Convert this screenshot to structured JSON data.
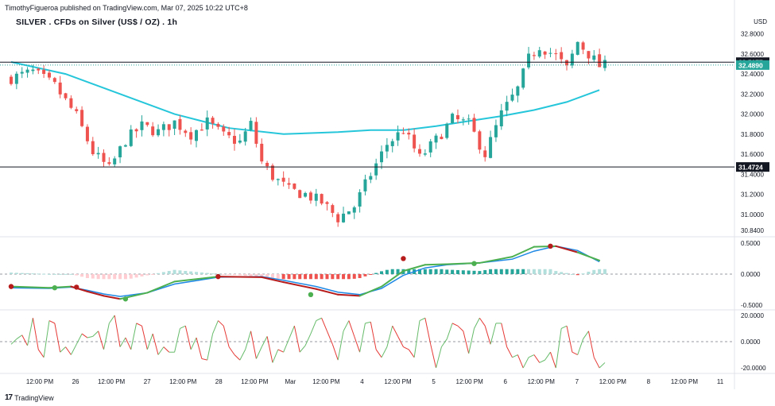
{
  "header": {
    "publisher": "TimothyFigueroa published on TradingView.com, Mar 07, 2025 10:22 UTC+8",
    "symbol": "SILVER . CFDs on Silver (US$ / OZ) . 1h",
    "currency": "USD"
  },
  "brand": {
    "logo": "17",
    "name": "TradingView"
  },
  "colors": {
    "up": "#26a69a",
    "down": "#ef5350",
    "ma": "#26c6da",
    "hline": "#131722",
    "price_label": "#26a69a",
    "osc_fast": "#2e7d32",
    "osc_fast_light": "#4caf50",
    "osc_slow": "#1e88e5",
    "osc_red": "#b71c1c",
    "stoch_up": "#66bb6a",
    "stoch_dn": "#e53935"
  },
  "chart_data": {
    "type": "candlestick",
    "price_axis": {
      "ticks": [
        "32.8000",
        "32.6000",
        "32.4000",
        "32.2000",
        "32.0000",
        "31.8000",
        "31.6000",
        "31.4000",
        "31.2000",
        "31.0000",
        "30.8400"
      ],
      "ylim": [
        30.8,
        32.9
      ]
    },
    "horizontal_lines": [
      {
        "price": 32.5177,
        "label": "32.5177",
        "style": "black"
      },
      {
        "price": 31.4724,
        "label": "31.4724",
        "style": "black"
      }
    ],
    "last_price": {
      "value": 32.489,
      "label": "32.4890"
    },
    "x_axis": {
      "labels": [
        "12:00 PM",
        "26",
        "12:00 PM",
        "27",
        "12:00 PM",
        "28",
        "12:00 PM",
        "Mar",
        "12:00 PM",
        "4",
        "12:00 PM",
        "5",
        "12:00 PM",
        "6",
        "12:00 PM",
        "7",
        "12:00 PM",
        "8",
        "12:00 PM",
        "11"
      ],
      "bold": [
        false,
        false,
        false,
        false,
        false,
        false,
        false,
        false,
        false,
        false,
        false,
        false,
        false,
        false,
        false,
        false,
        false,
        false,
        false,
        false
      ]
    },
    "close_path": [
      [
        0,
        32.36
      ],
      [
        4,
        32.42
      ],
      [
        8,
        32.28
      ],
      [
        12,
        31.98
      ],
      [
        15,
        31.62
      ],
      [
        18,
        31.45
      ],
      [
        21,
        31.74
      ],
      [
        24,
        31.88
      ],
      [
        27,
        31.82
      ],
      [
        30,
        31.92
      ],
      [
        33,
        31.8
      ],
      [
        36,
        31.92
      ],
      [
        39,
        31.78
      ],
      [
        42,
        31.72
      ],
      [
        44,
        31.9
      ],
      [
        46,
        31.52
      ],
      [
        48,
        31.38
      ],
      [
        51,
        31.24
      ],
      [
        54,
        31.2
      ],
      [
        57,
        31.12
      ],
      [
        60,
        30.96
      ],
      [
        63,
        31.08
      ],
      [
        66,
        31.4
      ],
      [
        69,
        31.7
      ],
      [
        72,
        31.84
      ],
      [
        75,
        31.56
      ],
      [
        78,
        31.74
      ],
      [
        81,
        31.95
      ],
      [
        84,
        31.9
      ],
      [
        87,
        31.6
      ],
      [
        90,
        32.0
      ],
      [
        93,
        32.25
      ],
      [
        95,
        32.55
      ],
      [
        97,
        32.68
      ],
      [
        100,
        32.58
      ],
      [
        102,
        32.45
      ],
      [
        104,
        32.72
      ],
      [
        106,
        32.6
      ],
      [
        108,
        32.48
      ]
    ],
    "moving_average": {
      "x": [
        0,
        10,
        20,
        30,
        40,
        50,
        60,
        66,
        72,
        78,
        84,
        90,
        96,
        102,
        108
      ],
      "y": [
        32.52,
        32.4,
        32.2,
        32.0,
        31.86,
        31.8,
        31.82,
        31.84,
        31.84,
        31.88,
        31.93,
        31.98,
        32.04,
        32.12,
        32.24
      ]
    },
    "oscillator": {
      "ticks": [
        "0.5000",
        "0.0000",
        "-0.5000"
      ],
      "ylim": [
        -0.55,
        0.55
      ],
      "fast": {
        "x": [
          0,
          7,
          11,
          14,
          17,
          20,
          25,
          30,
          38,
          46,
          50,
          56,
          60,
          64,
          68,
          72,
          76,
          80,
          86,
          92,
          96,
          100,
          104,
          108
        ],
        "y": [
          -0.2,
          -0.22,
          -0.2,
          -0.28,
          -0.35,
          -0.4,
          -0.3,
          -0.12,
          -0.04,
          -0.05,
          -0.13,
          -0.24,
          -0.33,
          -0.35,
          -0.2,
          0.05,
          0.15,
          0.16,
          0.18,
          0.28,
          0.44,
          0.45,
          0.35,
          0.22
        ]
      },
      "slow": {
        "x": [
          0,
          7,
          11,
          14,
          17,
          20,
          25,
          30,
          38,
          46,
          50,
          56,
          60,
          64,
          68,
          72,
          76,
          80,
          86,
          92,
          96,
          100,
          104,
          108
        ],
        "y": [
          -0.22,
          -0.23,
          -0.21,
          -0.26,
          -0.32,
          -0.36,
          -0.3,
          -0.16,
          -0.05,
          -0.04,
          -0.1,
          -0.2,
          -0.29,
          -0.33,
          -0.23,
          -0.02,
          0.1,
          0.15,
          0.18,
          0.24,
          0.37,
          0.45,
          0.38,
          0.2
        ]
      },
      "markers": [
        {
          "x": 0,
          "y": -0.2,
          "color": "red"
        },
        {
          "x": 8,
          "y": -0.22,
          "color": "green"
        },
        {
          "x": 12,
          "y": -0.21,
          "color": "red"
        },
        {
          "x": 21,
          "y": -0.4,
          "color": "green"
        },
        {
          "x": 38,
          "y": -0.04,
          "color": "red"
        },
        {
          "x": 55,
          "y": -0.33,
          "color": "green"
        },
        {
          "x": 72,
          "y": 0.25,
          "color": "red"
        },
        {
          "x": 85,
          "y": 0.17,
          "color": "green"
        },
        {
          "x": 99,
          "y": 0.45,
          "color": "red"
        }
      ]
    },
    "stochastic": {
      "ticks": [
        "20.0000",
        "0.0000",
        "-20.0000"
      ],
      "ylim": [
        -23,
        23
      ],
      "y": [
        -2,
        2,
        5,
        -3,
        18,
        -6,
        -12,
        16,
        14,
        -8,
        -4,
        -10,
        -2,
        6,
        3,
        4,
        8,
        -6,
        14,
        20,
        -4,
        3,
        -6,
        14,
        12,
        -6,
        6,
        -10,
        -4,
        -8,
        -8,
        10,
        12,
        -6,
        3,
        -13,
        -14,
        6,
        16,
        12,
        -4,
        -10,
        -14,
        -6,
        8,
        -13,
        -4,
        4,
        -16,
        -6,
        -8,
        2,
        12,
        -8,
        -3,
        6,
        16,
        18,
        8,
        -2,
        -14,
        8,
        16,
        4,
        -8,
        14,
        15,
        -6,
        -12,
        -4,
        12,
        4,
        -4,
        -6,
        -12,
        16,
        18,
        -2,
        -20,
        -4,
        2,
        14,
        12,
        8,
        -9,
        10,
        18,
        12,
        -2,
        14,
        14,
        -4,
        -12,
        -10,
        -20,
        -12,
        -10,
        -16,
        -14,
        -8,
        -20,
        10,
        12,
        -8,
        -10,
        2,
        8,
        -12,
        -20,
        -16
      ]
    }
  }
}
